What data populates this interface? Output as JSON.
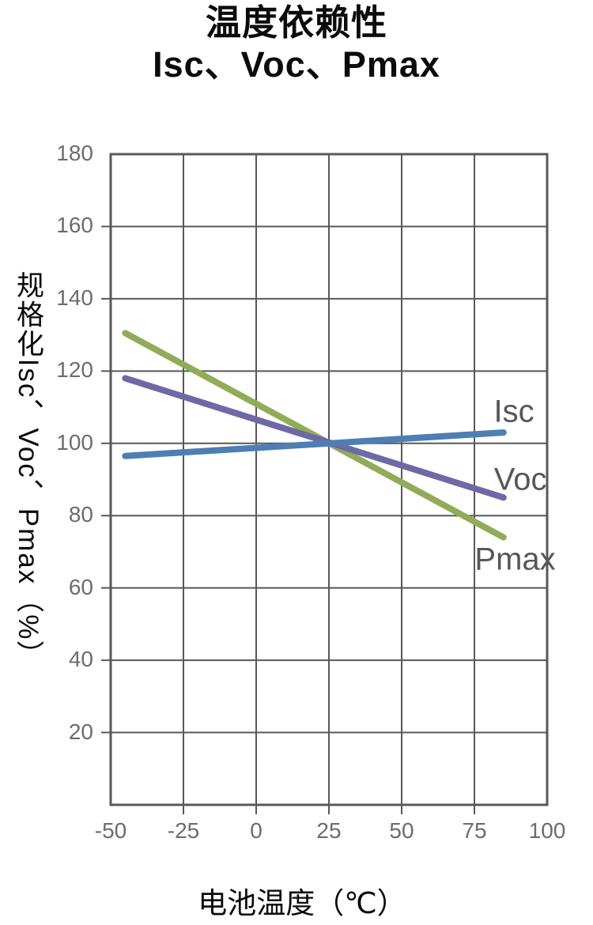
{
  "chart_data": {
    "type": "line",
    "title_line1": "温度依赖性",
    "title_line2": "Isc、Voc、Pmax",
    "xlabel": "电池温度（℃）",
    "ylabel": "规格化Isc、Voc、Pmax（%）",
    "xlim": [
      -50,
      100
    ],
    "ylim": [
      0,
      180
    ],
    "xticks": [
      -50,
      -25,
      0,
      25,
      50,
      75,
      100
    ],
    "yticks": [
      20,
      40,
      60,
      80,
      100,
      120,
      140,
      160,
      180
    ],
    "grid": true,
    "legend_position": "inline-right-of-lines",
    "colors": {
      "grid": "#58585b",
      "tick_label": "#6b6c6e",
      "series_label": "#55575c",
      "title": "#0b0b0b"
    },
    "series": [
      {
        "name": "Pmax",
        "color": "#91ac58",
        "x": [
          -45,
          85
        ],
        "y": [
          130.5,
          74
        ],
        "label_x": 89,
        "label_y": 67.8
      },
      {
        "name": "Voc",
        "color": "#6c69a5",
        "x": [
          -45,
          85
        ],
        "y": [
          118,
          85
        ],
        "label_x": 90.8,
        "label_y": 90
      },
      {
        "name": "Isc",
        "color": "#4d7eb4",
        "x": [
          -45,
          85
        ],
        "y": [
          96.5,
          103
        ],
        "label_x": 88.6,
        "label_y": 108.7
      }
    ]
  }
}
